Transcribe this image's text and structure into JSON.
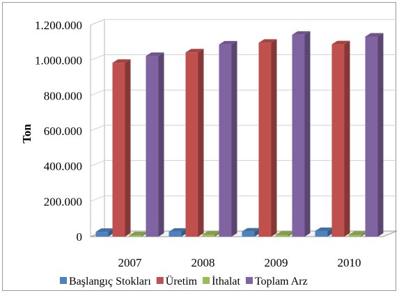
{
  "chart_data": {
    "type": "bar",
    "title": "",
    "xlabel": "",
    "ylabel": "Ton",
    "categories": [
      "2007",
      "2008",
      "2009",
      "2010"
    ],
    "series": [
      {
        "name": "Başlangıç Stokları",
        "values": [
          27000,
          28000,
          29000,
          32000
        ],
        "color": "#4f81bd"
      },
      {
        "name": "Üretim",
        "values": [
          986000,
          1045000,
          1100000,
          1091000
        ],
        "color": "#c0504d"
      },
      {
        "name": "İthalat",
        "values": [
          8000,
          12000,
          10000,
          10000
        ],
        "color": "#9bbb59"
      },
      {
        "name": "Toplam Arz",
        "values": [
          1025000,
          1090000,
          1145000,
          1135000
        ],
        "color": "#8064a2"
      }
    ],
    "ylim": [
      0,
      1200000
    ],
    "yticks": [
      0,
      200000,
      400000,
      600000,
      800000,
      1000000,
      1200000
    ],
    "ytick_labels": [
      "0",
      "200.000",
      "400.000",
      "600.000",
      "800.000",
      "1.000.000",
      "1.200.000"
    ],
    "grid": true,
    "legend_position": "bottom"
  }
}
